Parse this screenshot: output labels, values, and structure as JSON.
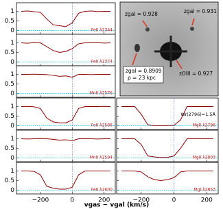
{
  "chart_data": [
    {
      "type": "line",
      "label": "FeII λ2344",
      "xlim": [
        -350,
        270
      ],
      "ylim": [
        -0.2,
        1.45
      ],
      "yticks": [
        0,
        0.5,
        1
      ],
      "xticks": [
        -200,
        0,
        200
      ],
      "x": [
        -320,
        -280,
        -240,
        -200,
        -160,
        -120,
        -80,
        -40,
        0,
        40,
        80,
        120,
        160,
        200,
        240
      ],
      "series": [
        {
          "color": "#8b0000",
          "values": [
            1,
            1.02,
            0.98,
            0.95,
            0.6,
            0.3,
            0.25,
            0.2,
            0.4,
            0.9,
            1,
            1.02,
            0.99,
            1,
            1
          ]
        }
      ]
    },
    {
      "type": "line",
      "label": "FeII λ2374",
      "xlim": [
        -350,
        270
      ],
      "ylim": [
        -0.2,
        1.45
      ],
      "yticks": [
        0,
        0.5,
        1
      ],
      "xticks": [
        -200,
        0,
        200
      ],
      "x": [
        -320,
        -280,
        -240,
        -200,
        -160,
        -120,
        -80,
        -40,
        0,
        40,
        80,
        120,
        160,
        200,
        240
      ],
      "series": [
        {
          "color": "#8b0000",
          "values": [
            1,
            0.98,
            1.02,
            1,
            0.8,
            0.6,
            0.5,
            0.55,
            0.7,
            0.95,
            1,
            1,
            1.01,
            0.99,
            1
          ]
        }
      ]
    },
    {
      "type": "line",
      "label": "MnII λ2576",
      "xlim": [
        -350,
        270
      ],
      "ylim": [
        -0.2,
        1.45
      ],
      "yticks": [
        0,
        0.5,
        1
      ],
      "xticks": [
        -200,
        0,
        200
      ],
      "x": [
        -320,
        -280,
        -240,
        -200,
        -160,
        -120,
        -80,
        -40,
        0,
        40,
        80,
        120,
        160,
        200,
        240
      ],
      "series": [
        {
          "color": "#8b0000",
          "values": [
            1,
            1,
            1.01,
            1,
            0.99,
            0.95,
            0.9,
            0.92,
            0.85,
            1,
            1,
            0.99,
            1,
            1,
            1
          ]
        }
      ]
    },
    {
      "type": "line",
      "label": "FeII λ2586",
      "xlim": [
        -350,
        270
      ],
      "ylim": [
        -0.2,
        1.45
      ],
      "yticks": [
        0,
        0.5,
        1
      ],
      "xticks": [
        -200,
        0,
        200
      ],
      "x": [
        -320,
        -280,
        -240,
        -200,
        -160,
        -120,
        -80,
        -40,
        0,
        40,
        80,
        120,
        160,
        200,
        240
      ],
      "series": [
        {
          "color": "#8b0000",
          "values": [
            1,
            1.01,
            0.99,
            0.9,
            0.4,
            0.2,
            0.15,
            0.15,
            0.3,
            0.9,
            1,
            1,
            1,
            1.01,
            1
          ]
        }
      ]
    },
    {
      "type": "line",
      "label": "MnII λ2594",
      "xlim": [
        -350,
        270
      ],
      "ylim": [
        -0.2,
        1.45
      ],
      "yticks": [
        0,
        0.5,
        1
      ],
      "xticks": [
        -200,
        0,
        200
      ],
      "x": [
        -320,
        -280,
        -240,
        -200,
        -160,
        -120,
        -80,
        -40,
        0,
        40,
        80,
        120,
        160,
        200,
        240
      ],
      "series": [
        {
          "color": "#8b0000",
          "values": [
            1,
            0.99,
            1,
            1.01,
            1,
            0.97,
            0.93,
            0.95,
            0.9,
            1,
            1,
            1,
            0.99,
            1,
            1
          ]
        }
      ]
    },
    {
      "type": "line",
      "label": "FeII λ2600",
      "xlim": [
        -350,
        270
      ],
      "ylim": [
        -0.2,
        1.45
      ],
      "yticks": [
        0,
        0.5,
        1
      ],
      "xticks": [
        {
          "value": -200,
          "label": "−200"
        },
        0,
        200
      ],
      "x": [
        -320,
        -280,
        -240,
        -200,
        -160,
        -120,
        -80,
        -40,
        0,
        40,
        80,
        120,
        160,
        200,
        240
      ],
      "series": [
        {
          "color": "#8b0000",
          "values": [
            1,
            1,
            0.98,
            0.8,
            0.2,
            0.1,
            0.05,
            0.05,
            0.15,
            0.8,
            1,
            1,
            1,
            1,
            1
          ]
        }
      ]
    },
    {
      "type": "line",
      "label": "MgII λ2796",
      "note": "Wr(2796)=1.5Å",
      "xlim": [
        -350,
        270
      ],
      "ylim": [
        -0.2,
        1.45
      ],
      "yticks": [
        0,
        0.5,
        1
      ],
      "xticks": [
        -200,
        0,
        200
      ],
      "x": [
        -320,
        -280,
        -240,
        -200,
        -160,
        -120,
        -80,
        -40,
        0,
        40,
        80,
        120,
        160,
        200,
        240
      ],
      "series": [
        {
          "color": "#8b0000",
          "values": [
            1,
            1,
            1,
            0.6,
            0.05,
            0,
            0,
            0,
            0.02,
            0.3,
            1,
            1,
            1,
            1,
            1
          ]
        }
      ]
    },
    {
      "type": "line",
      "label": "MgII λ2803",
      "xlim": [
        -350,
        270
      ],
      "ylim": [
        -0.2,
        1.45
      ],
      "yticks": [
        0,
        0.5,
        1
      ],
      "xticks": [
        -200,
        0,
        200
      ],
      "x": [
        -320,
        -280,
        -240,
        -200,
        -160,
        -120,
        -80,
        -40,
        0,
        40,
        80,
        120,
        160,
        200,
        240
      ],
      "series": [
        {
          "color": "#8b0000",
          "values": [
            1,
            1,
            1,
            0.7,
            0.1,
            0.05,
            0.02,
            0.03,
            0.1,
            0.5,
            1,
            1,
            1,
            1,
            1
          ]
        }
      ]
    },
    {
      "type": "line",
      "label": "MgI λ2853",
      "xlim": [
        -350,
        270
      ],
      "ylim": [
        -0.2,
        1.45
      ],
      "yticks": [
        0,
        0.5,
        1
      ],
      "xticks": [
        {
          "value": -200,
          "label": "−200"
        },
        0,
        200
      ],
      "x": [
        -320,
        -280,
        -240,
        -200,
        -160,
        -120,
        -80,
        -40,
        0,
        40,
        80,
        120,
        160,
        200,
        240
      ],
      "series": [
        {
          "color": "#8b0000",
          "values": [
            1,
            1,
            1,
            0.95,
            0.7,
            0.55,
            0.5,
            0.55,
            0.65,
            0.95,
            1,
            1,
            1,
            1,
            1
          ]
        }
      ]
    }
  ],
  "figure": {
    "xlabel": "vgas − vgal (km/s)",
    "image": {
      "label1": "zgal = 0.928",
      "label2": "zgal = 0.931",
      "label3": "zgal = 0.8909",
      "label4": "ρ = 23 kpc",
      "label5": "zOIII = 0.927"
    }
  }
}
